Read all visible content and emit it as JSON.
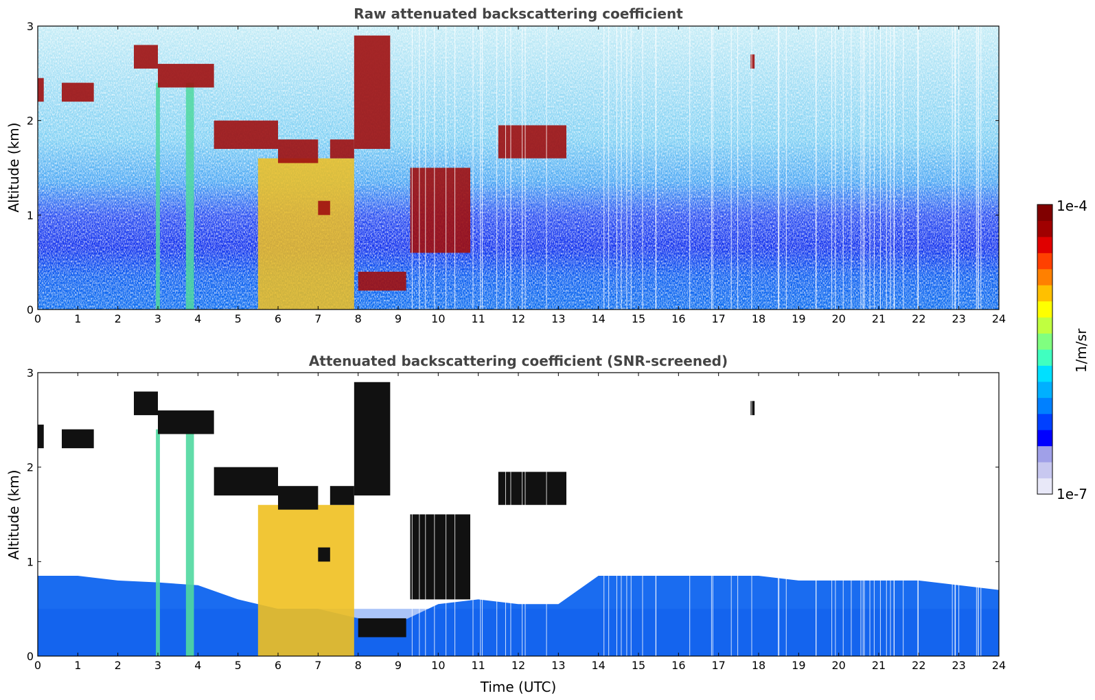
{
  "chart_data": [
    {
      "type": "heatmap",
      "title": "Raw attenuated backscattering coefficient",
      "xlabel": "",
      "ylabel": "Altitude (km)",
      "xlim": [
        0,
        24
      ],
      "ylim": [
        0,
        3
      ],
      "x_ticks": [
        "0",
        "1",
        "2",
        "3",
        "4",
        "5",
        "6",
        "7",
        "8",
        "9",
        "10",
        "11",
        "12",
        "13",
        "14",
        "15",
        "16",
        "17",
        "18",
        "19",
        "20",
        "21",
        "22",
        "23",
        "24"
      ],
      "y_ticks": [
        "0",
        "1",
        "2",
        "3"
      ],
      "screened": false,
      "cloud_layers": [
        {
          "t": [
            0.0,
            0.15
          ],
          "alt": [
            2.2,
            2.45
          ]
        },
        {
          "t": [
            0.6,
            1.4
          ],
          "alt": [
            2.2,
            2.4
          ]
        },
        {
          "t": [
            2.4,
            3.0
          ],
          "alt": [
            2.55,
            2.8
          ]
        },
        {
          "t": [
            3.0,
            4.4
          ],
          "alt": [
            2.35,
            2.6
          ]
        },
        {
          "t": [
            4.4,
            6.0
          ],
          "alt": [
            1.7,
            2.0
          ]
        },
        {
          "t": [
            6.0,
            7.0
          ],
          "alt": [
            1.55,
            1.8
          ]
        },
        {
          "t": [
            7.0,
            7.3
          ],
          "alt": [
            1.0,
            1.15
          ]
        },
        {
          "t": [
            7.3,
            7.9
          ],
          "alt": [
            1.6,
            1.8
          ]
        },
        {
          "t": [
            7.9,
            8.8
          ],
          "alt": [
            1.7,
            2.9
          ]
        },
        {
          "t": [
            8.0,
            9.2
          ],
          "alt": [
            0.2,
            0.4
          ]
        },
        {
          "t": [
            9.3,
            10.8
          ],
          "alt": [
            0.6,
            1.5
          ]
        },
        {
          "t": [
            11.5,
            13.2
          ],
          "alt": [
            1.6,
            1.95
          ]
        },
        {
          "t": [
            17.8,
            17.9
          ],
          "alt": [
            2.55,
            2.7
          ]
        }
      ],
      "fog_regions": [
        {
          "t": [
            5.5,
            7.9
          ],
          "alt": [
            0.0,
            1.6
          ],
          "value": "high"
        },
        {
          "t": [
            3.7,
            3.9
          ],
          "alt": [
            0.0,
            2.4
          ],
          "value": "mid"
        },
        {
          "t": [
            2.95,
            3.05
          ],
          "alt": [
            0.0,
            2.4
          ],
          "value": "mid"
        }
      ]
    },
    {
      "type": "heatmap",
      "title": "Attenuated backscattering coefficient (SNR-screened)",
      "xlabel": "Time (UTC)",
      "ylabel": "Altitude (km)",
      "xlim": [
        0,
        24
      ],
      "ylim": [
        0,
        3
      ],
      "x_ticks": [
        "0",
        "1",
        "2",
        "3",
        "4",
        "5",
        "6",
        "7",
        "8",
        "9",
        "10",
        "11",
        "12",
        "13",
        "14",
        "15",
        "16",
        "17",
        "18",
        "19",
        "20",
        "21",
        "22",
        "23",
        "24"
      ],
      "y_ticks": [
        "0",
        "1",
        "2",
        "3"
      ],
      "screened": true,
      "boundary_layer_top_km": [
        0.85,
        0.85,
        0.8,
        0.78,
        0.75,
        0.6,
        0.5,
        0.5,
        0.4,
        0.35,
        0.55,
        0.6,
        0.55,
        0.55,
        0.85,
        0.85,
        0.85,
        0.85,
        0.85,
        0.8,
        0.8,
        0.8,
        0.8,
        0.75,
        0.7
      ]
    }
  ],
  "colorbar": {
    "top_label": "1e-4",
    "bottom_label": "1e-7",
    "unit": "1/m/sr",
    "colors": [
      "#e8e8f8",
      "#c8c8f0",
      "#a0a0e8",
      "#0000ff",
      "#0040ff",
      "#0080ff",
      "#00b0ff",
      "#00e0ff",
      "#40ffc0",
      "#80ff80",
      "#c0ff40",
      "#ffff00",
      "#ffc000",
      "#ff8000",
      "#ff4000",
      "#e00000",
      "#a00000",
      "#800000"
    ]
  }
}
